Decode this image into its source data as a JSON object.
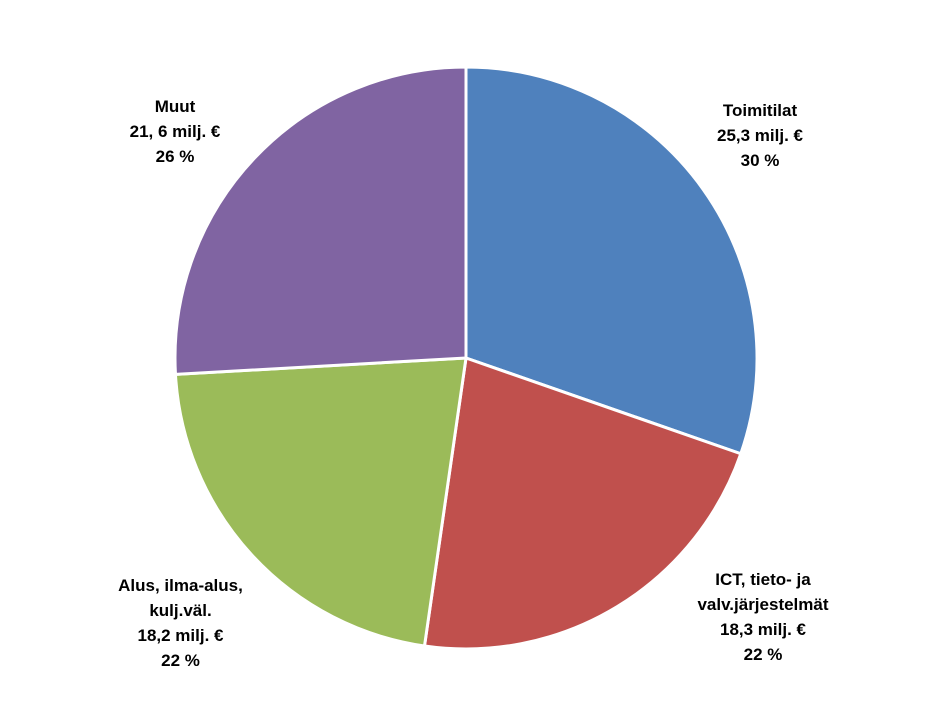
{
  "chart_data": {
    "type": "pie",
    "title": "",
    "slices": [
      {
        "name": "Toimitilat",
        "value": 25.3,
        "value_label": "25,3 milj. €",
        "percent": 30,
        "percent_label": "30 %",
        "color": "#4F81BD",
        "label_lines": [
          "Toimitilat"
        ]
      },
      {
        "name": "ICT, tieto- ja valv.järjestelmät",
        "value": 18.3,
        "value_label": "18,3 milj. €",
        "percent": 22,
        "percent_label": "22 %",
        "color": "#C0504D",
        "label_lines": [
          "ICT, tieto- ja",
          "valv.järjestelmät"
        ]
      },
      {
        "name": "Alus, ilma-alus, kulj.väl.",
        "value": 18.2,
        "value_label": "18,2 milj. €",
        "percent": 22,
        "percent_label": "22 %",
        "color": "#9BBB59",
        "label_lines": [
          "Alus, ilma-alus,",
          "kulj.väl."
        ]
      },
      {
        "name": "Muut",
        "value": 21.6,
        "value_label": "21, 6 milj. €",
        "percent": 26,
        "percent_label": "26 %",
        "color": "#8064A2",
        "label_lines": [
          "Muut"
        ]
      }
    ],
    "start": "12 o'clock",
    "direction": "clockwise",
    "legend": "none"
  }
}
